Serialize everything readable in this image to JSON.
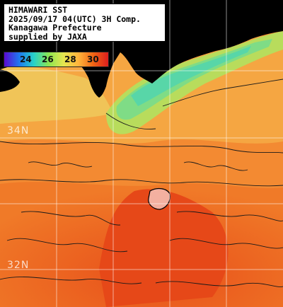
{
  "header": {
    "line1": "HIMAWARI SST",
    "line2": "2025/09/17 04(UTC) 3H Comp.",
    "line3": "Kanagawa Prefecture",
    "line4": "supplied by JAXA"
  },
  "colorbar": {
    "ticks": [
      "24",
      "26",
      "28",
      "30"
    ],
    "colors": [
      "#5a0ad0",
      "#1e78f0",
      "#28d2c8",
      "#8ce650",
      "#e6e650",
      "#ffb43c",
      "#f06414",
      "#dc1e1e"
    ]
  },
  "grid": {
    "lat_labels": [
      "34N",
      "32N"
    ]
  },
  "palette": {
    "land": "#000000",
    "sea_warm": "#f06a1e",
    "sea_mid": "#f59a3c",
    "sea_cool": "#e6c850",
    "coastal_green": "#9ae07a"
  }
}
